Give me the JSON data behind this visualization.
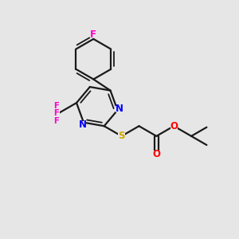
{
  "background_color": "#e6e6e6",
  "bond_color": "#1a1a1a",
  "N_color": "#0000ff",
  "S_color": "#ccaa00",
  "O_color": "#ff0000",
  "F_color": "#ff00cc",
  "figsize": [
    3.0,
    3.0
  ],
  "dpi": 100,
  "xlim": [
    0,
    10
  ],
  "ylim": [
    0,
    10
  ]
}
